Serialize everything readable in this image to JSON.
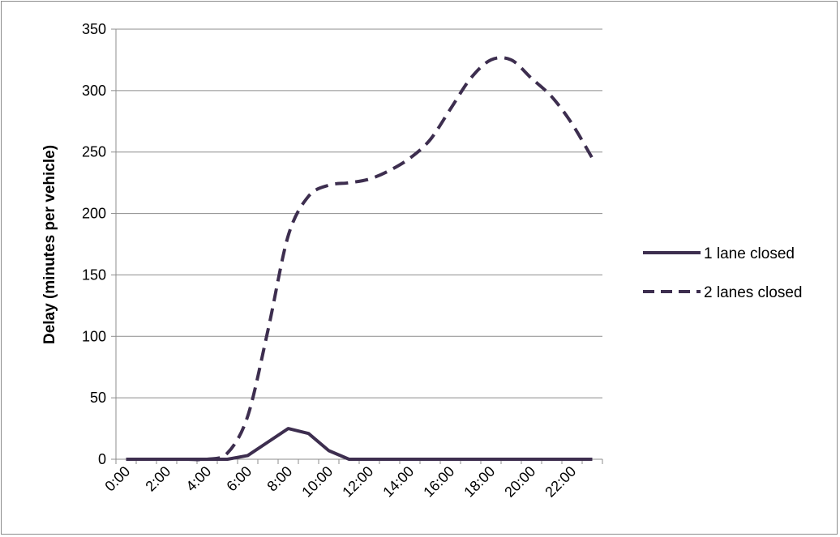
{
  "chart_data": {
    "type": "line",
    "title": "",
    "xlabel": "",
    "ylabel": "Delay (minutes per vehicle)",
    "ylim": [
      0,
      350
    ],
    "yticks": [
      0,
      50,
      100,
      150,
      200,
      250,
      300,
      350
    ],
    "grid": "horizontal",
    "legend_position": "right",
    "categories": [
      "0:00",
      "1:00",
      "2:00",
      "3:00",
      "4:00",
      "5:00",
      "6:00",
      "7:00",
      "8:00",
      "9:00",
      "10:00",
      "11:00",
      "12:00",
      "13:00",
      "14:00",
      "15:00",
      "16:00",
      "17:00",
      "18:00",
      "19:00",
      "20:00",
      "21:00",
      "22:00",
      "23:00"
    ],
    "tick_labels": [
      "0:00",
      "2:00",
      "4:00",
      "6:00",
      "8:00",
      "10:00",
      "12:00",
      "14:00",
      "16:00",
      "18:00",
      "20:00",
      "22:00"
    ],
    "series": [
      {
        "name": "1 lane closed",
        "style": "solid",
        "color": "#3d2e4f",
        "values": [
          0,
          0,
          0,
          0,
          0,
          0,
          3,
          14,
          25,
          21,
          7,
          0,
          0,
          0,
          0,
          0,
          0,
          0,
          0,
          0,
          0,
          0,
          0,
          0
        ]
      },
      {
        "name": "2 lanes closed",
        "style": "dashed",
        "color": "#3d2e4f",
        "values": [
          0,
          0,
          0,
          0,
          0,
          5,
          35,
          105,
          182,
          214,
          223,
          225,
          228,
          235,
          245,
          260,
          285,
          310,
          325,
          325,
          310,
          295,
          273,
          245
        ]
      }
    ]
  }
}
